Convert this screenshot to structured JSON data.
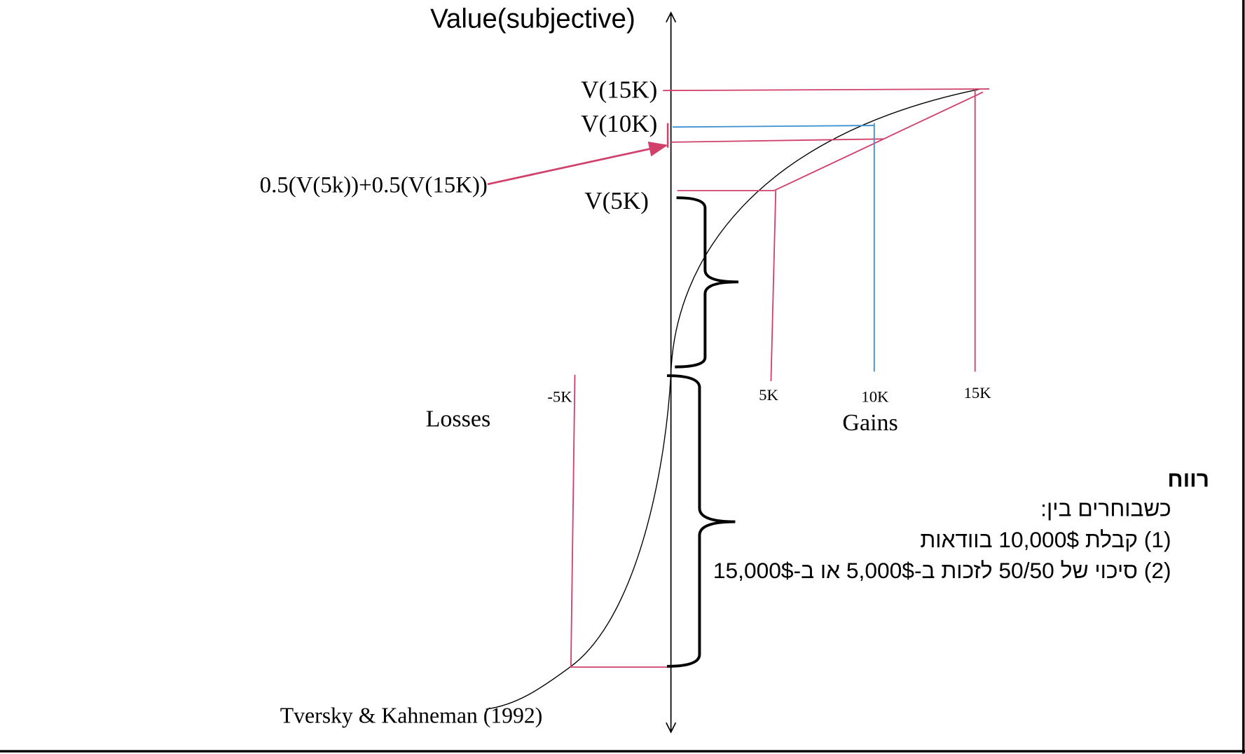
{
  "axis": {
    "y_label": "Value(subjective)",
    "losses_label": "Losses",
    "gains_label": "Gains"
  },
  "values": {
    "v15k": "V(15K)",
    "v10k": "V(10K)",
    "v5k": "V(5K)",
    "expected": "0.5(V(5k))+0.5(V(15K))"
  },
  "ticks": {
    "neg5k": "-5K",
    "k5": "5K",
    "k10": "10K",
    "k15": "15K"
  },
  "citation": "Tversky & Kahneman (1992)",
  "hebrew": {
    "title": "רווח",
    "line1": "כשבוחרים בין:",
    "line2": "(1) קבלת 10,000$ בוודאות",
    "line3": "(2) סיכוי של 50/50 לזכות ב-5,000$ או ב-15,000$"
  },
  "colors": {
    "pink": "#d0406a",
    "blue": "#3a8fd0",
    "curve": "#000000"
  }
}
